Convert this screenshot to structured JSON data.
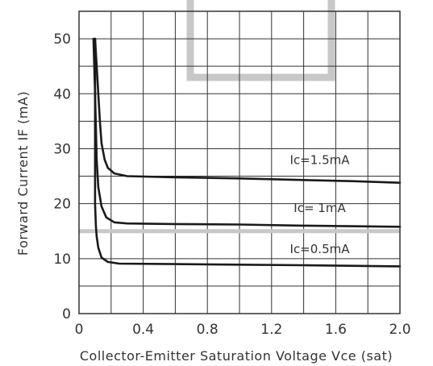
{
  "chart_data": {
    "type": "line",
    "xlabel": "Collector-Emitter Saturation Voltage Vce (sat)",
    "ylabel": "Forward Current IF (mA)",
    "xlim": [
      0,
      2.0
    ],
    "ylim": [
      0,
      55
    ],
    "x_ticks": [
      0,
      0.4,
      0.8,
      1.2,
      1.6,
      2.0
    ],
    "x_tick_labels": [
      "0",
      "0.4",
      "0.8",
      "1.2",
      "1.6",
      "2.0"
    ],
    "y_ticks": [
      0,
      10,
      20,
      30,
      40,
      50
    ],
    "y_tick_labels": [
      "0",
      "10",
      "20",
      "30",
      "40",
      "50"
    ],
    "grid": true,
    "colors": {
      "line": "#1a1a1a",
      "grid": "#333333",
      "overlay": "#c8c8c8"
    },
    "series": [
      {
        "name": "Ic=1.5mA",
        "points": [
          [
            0.1,
            50
          ],
          [
            0.11,
            45
          ],
          [
            0.12,
            40
          ],
          [
            0.13,
            35
          ],
          [
            0.14,
            31
          ],
          [
            0.16,
            28
          ],
          [
            0.18,
            26.5
          ],
          [
            0.22,
            25.5
          ],
          [
            0.3,
            25
          ],
          [
            0.6,
            24.8
          ],
          [
            1.0,
            24.6
          ],
          [
            1.4,
            24.3
          ],
          [
            1.7,
            24.1
          ],
          [
            2.0,
            23.8
          ]
        ]
      },
      {
        "name": "Ic=  1mA",
        "points": [
          [
            0.09,
            50
          ],
          [
            0.095,
            45
          ],
          [
            0.1,
            40
          ],
          [
            0.105,
            34
          ],
          [
            0.11,
            28
          ],
          [
            0.12,
            23
          ],
          [
            0.14,
            19.5
          ],
          [
            0.17,
            17.5
          ],
          [
            0.22,
            16.6
          ],
          [
            0.3,
            16.4
          ],
          [
            0.6,
            16.3
          ],
          [
            1.0,
            16.2
          ],
          [
            1.4,
            16.0
          ],
          [
            2.0,
            15.8
          ]
        ]
      },
      {
        "name": "Ic=0.5mA",
        "points": [
          [
            0.1,
            50
          ],
          [
            0.1,
            45
          ],
          [
            0.1,
            40
          ],
          [
            0.1,
            32
          ],
          [
            0.1,
            26
          ],
          [
            0.1,
            20
          ],
          [
            0.105,
            16
          ],
          [
            0.11,
            14
          ],
          [
            0.12,
            12
          ],
          [
            0.14,
            10.2
          ],
          [
            0.18,
            9.4
          ],
          [
            0.25,
            9.1
          ],
          [
            0.6,
            9.0
          ],
          [
            1.0,
            8.9
          ],
          [
            1.4,
            8.8
          ],
          [
            2.0,
            8.6
          ]
        ]
      }
    ],
    "horizontal_line": {
      "y": 15,
      "color": "#c8c8c8"
    }
  }
}
